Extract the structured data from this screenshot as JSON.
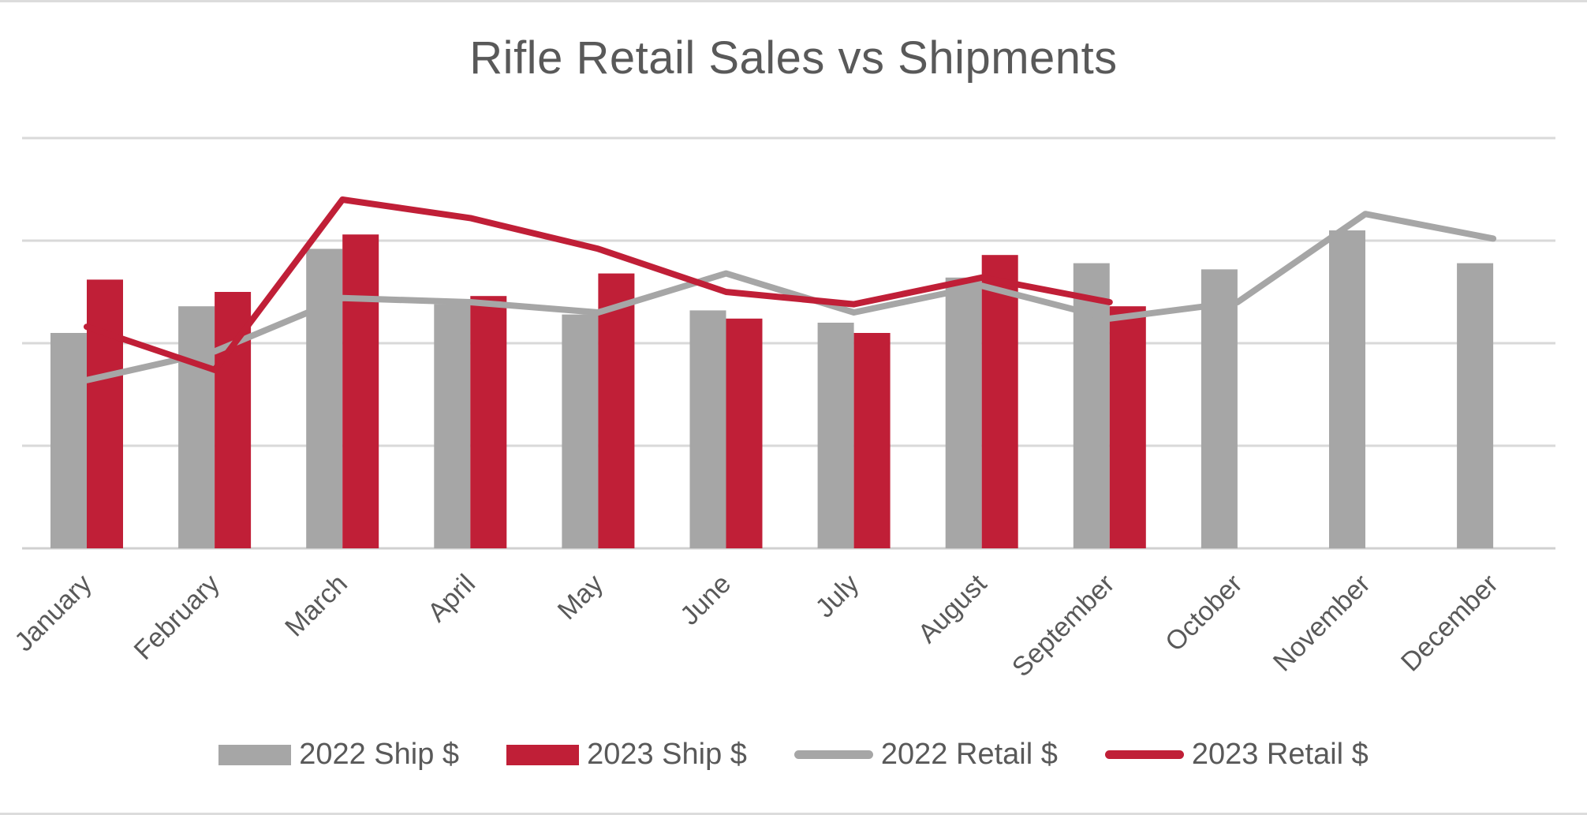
{
  "colors": {
    "gray": "#a6a6a6",
    "red": "#c01f37",
    "grid": "#d9d9d9",
    "text": "#595959"
  },
  "chart_data": {
    "type": "bar",
    "title": "Rifle Retail Sales vs Shipments",
    "xlabel": "",
    "ylabel": "",
    "ylim": [
      0,
      100
    ],
    "grid": true,
    "legend_position": "bottom",
    "categories": [
      "January",
      "February",
      "March",
      "April",
      "May",
      "June",
      "July",
      "August",
      "September",
      "October",
      "November",
      "December"
    ],
    "series": [
      {
        "name": "2022 Ship $",
        "kind": "bar",
        "color": "#a6a6a6",
        "values": [
          52.5,
          59,
          73,
          59.5,
          57,
          58,
          55,
          66,
          69.5,
          68,
          77.5,
          69.5
        ]
      },
      {
        "name": "2023 Ship $",
        "kind": "bar",
        "color": "#c01f37",
        "values": [
          65.5,
          62.5,
          76.5,
          61.5,
          67,
          56,
          52.5,
          71.5,
          59,
          null,
          null,
          null
        ]
      },
      {
        "name": "2022 Retail $",
        "kind": "line",
        "color": "#a6a6a6",
        "values": [
          41,
          48,
          61,
          60,
          57.5,
          67,
          57.5,
          64,
          56,
          60,
          81.5,
          75.5
        ]
      },
      {
        "name": "2023 Retail $",
        "kind": "line",
        "color": "#c01f37",
        "values": [
          54,
          43.5,
          85,
          80.5,
          73,
          62.5,
          59.5,
          66,
          60,
          null,
          null,
          null
        ]
      }
    ]
  }
}
